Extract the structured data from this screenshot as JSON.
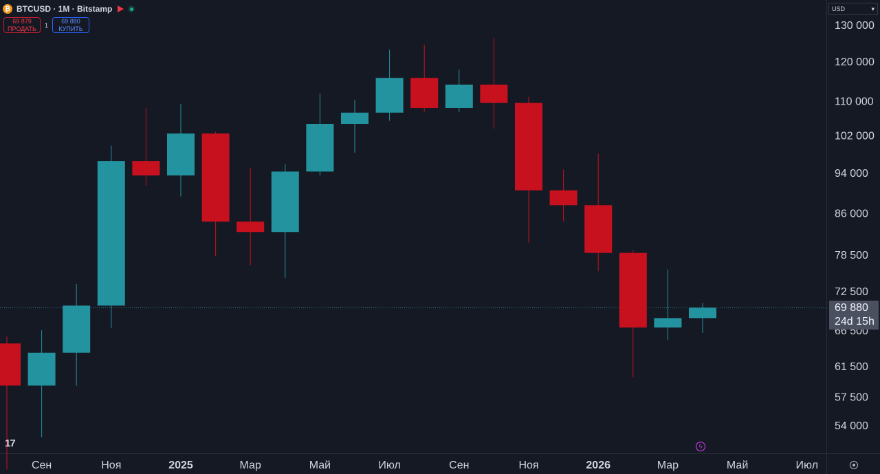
{
  "header": {
    "symbol_title": "BTCUSD · 1M · Bitstamp",
    "coin_icon": "bitcoin-icon"
  },
  "trade": {
    "sell_price": "69 879",
    "sell_label": "ПРОДАТЬ",
    "spread": "1",
    "buy_price": "69 880",
    "buy_label": "КУПИТЬ"
  },
  "currency": {
    "value": "USD"
  },
  "price_badge": {
    "price": "69 880",
    "countdown": "24d 15h"
  },
  "colors": {
    "up": "#22939f",
    "down": "#c7111f",
    "background": "#151924"
  },
  "chart_data": {
    "type": "candlestick",
    "y_ticks": [
      {
        "value": 130000,
        "label": "130 000"
      },
      {
        "value": 120000,
        "label": "120 000"
      },
      {
        "value": 110000,
        "label": "110 000"
      },
      {
        "value": 102000,
        "label": "102 000"
      },
      {
        "value": 94000,
        "label": "94 000"
      },
      {
        "value": 86000,
        "label": "86 000"
      },
      {
        "value": 78500,
        "label": "78 500"
      },
      {
        "value": 72500,
        "label": "72 500"
      },
      {
        "value": 66500,
        "label": "66 500"
      },
      {
        "value": 61500,
        "label": "61 500"
      },
      {
        "value": 57500,
        "label": "57 500"
      },
      {
        "value": 54000,
        "label": "54 000"
      }
    ],
    "x_ticks": [
      {
        "label": "Сен",
        "bold": false
      },
      {
        "label": "Ноя",
        "bold": false
      },
      {
        "label": "2025",
        "bold": true
      },
      {
        "label": "Мар",
        "bold": false
      },
      {
        "label": "Май",
        "bold": false
      },
      {
        "label": "Июл",
        "bold": false
      },
      {
        "label": "Сен",
        "bold": false
      },
      {
        "label": "Ноя",
        "bold": false
      },
      {
        "label": "2026",
        "bold": true
      },
      {
        "label": "Мар",
        "bold": false
      },
      {
        "label": "Май",
        "bold": false
      },
      {
        "label": "Июл",
        "bold": false
      }
    ],
    "current_price": 69880,
    "candles": [
      {
        "month": "2024-08",
        "open": 64600,
        "high": 65600,
        "low": 49000,
        "close": 58900
      },
      {
        "month": "2024-09",
        "open": 58900,
        "high": 66500,
        "low": 52600,
        "close": 63300
      },
      {
        "month": "2024-10",
        "open": 63300,
        "high": 73600,
        "low": 58900,
        "close": 70200
      },
      {
        "month": "2024-11",
        "open": 70200,
        "high": 99700,
        "low": 66800,
        "close": 96400
      },
      {
        "month": "2024-12",
        "open": 96400,
        "high": 108300,
        "low": 91400,
        "close": 93400
      },
      {
        "month": "2025-01",
        "open": 93400,
        "high": 109300,
        "low": 89200,
        "close": 102400
      },
      {
        "month": "2025-02",
        "open": 102400,
        "high": 102800,
        "low": 78300,
        "close": 84400
      },
      {
        "month": "2025-03",
        "open": 84400,
        "high": 95000,
        "low": 76700,
        "close": 82500
      },
      {
        "month": "2025-04",
        "open": 82500,
        "high": 95700,
        "low": 74600,
        "close": 94200
      },
      {
        "month": "2025-05",
        "open": 94200,
        "high": 111900,
        "low": 93400,
        "close": 104600
      },
      {
        "month": "2025-06",
        "open": 104600,
        "high": 110300,
        "low": 98200,
        "close": 107200
      },
      {
        "month": "2025-07",
        "open": 107200,
        "high": 123100,
        "low": 105300,
        "close": 115700
      },
      {
        "month": "2025-08",
        "open": 115700,
        "high": 124400,
        "low": 107400,
        "close": 108300
      },
      {
        "month": "2025-09",
        "open": 108300,
        "high": 117800,
        "low": 107300,
        "close": 114000
      },
      {
        "month": "2025-10",
        "open": 114000,
        "high": 126200,
        "low": 103500,
        "close": 109500
      },
      {
        "month": "2025-11",
        "open": 109500,
        "high": 111000,
        "low": 80600,
        "close": 90400
      },
      {
        "month": "2025-12",
        "open": 90400,
        "high": 94600,
        "low": 84400,
        "close": 87500
      },
      {
        "month": "2026-01",
        "open": 87500,
        "high": 97900,
        "low": 75700,
        "close": 78800
      },
      {
        "month": "2026-02",
        "open": 78800,
        "high": 79300,
        "low": 60000,
        "close": 66900
      },
      {
        "month": "2026-03",
        "open": 66900,
        "high": 76000,
        "low": 65100,
        "close": 68300
      },
      {
        "month": "2026-04",
        "open": 68300,
        "high": 70600,
        "low": 66100,
        "close": 69880
      }
    ]
  }
}
